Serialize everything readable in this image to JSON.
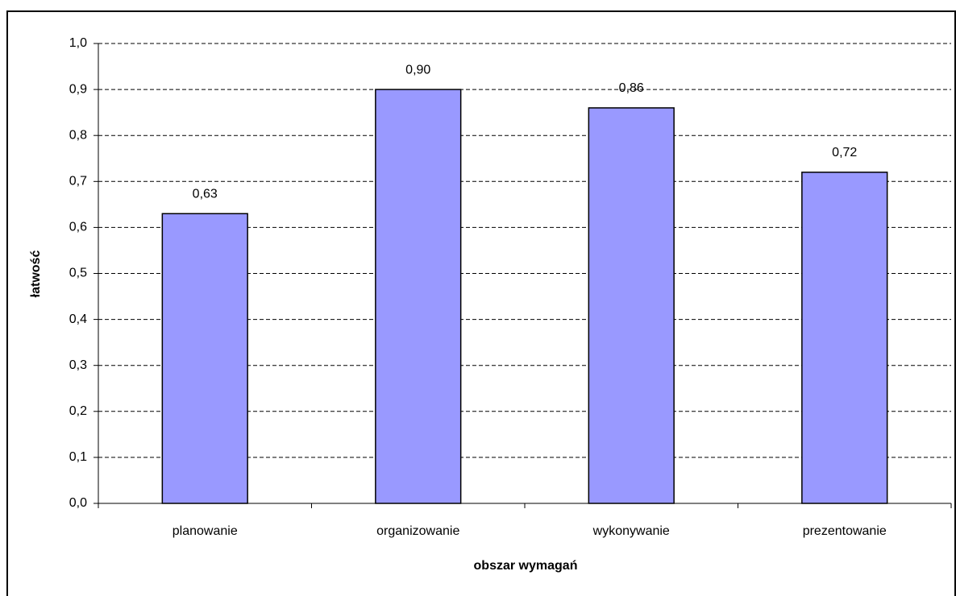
{
  "chart_data": {
    "type": "bar",
    "xlabel": "obszar wymagań",
    "ylabel": "łatwość",
    "categories": [
      "planowanie",
      "organizowanie",
      "wykonywanie",
      "prezentowanie"
    ],
    "values": [
      0.63,
      0.9,
      0.86,
      0.72
    ],
    "value_labels": [
      "0,63",
      "0,90",
      "0,86",
      "0,72"
    ],
    "color": "#9999ff",
    "ylim": [
      0,
      1
    ],
    "yticks": [
      {
        "value": 0,
        "label": "0,0"
      },
      {
        "value": 0.1,
        "label": "0,1"
      },
      {
        "value": 0.2,
        "label": "0,2"
      },
      {
        "value": 0.3,
        "label": "0,3"
      },
      {
        "value": 0.4,
        "label": "0,4"
      },
      {
        "value": 0.5,
        "label": "0,5"
      },
      {
        "value": 0.6,
        "label": "0,6"
      },
      {
        "value": 0.7,
        "label": "0,7"
      },
      {
        "value": 0.8,
        "label": "0,8"
      },
      {
        "value": 0.9,
        "label": "0,9"
      },
      {
        "value": 1,
        "label": "1,0"
      }
    ],
    "grid": true
  }
}
